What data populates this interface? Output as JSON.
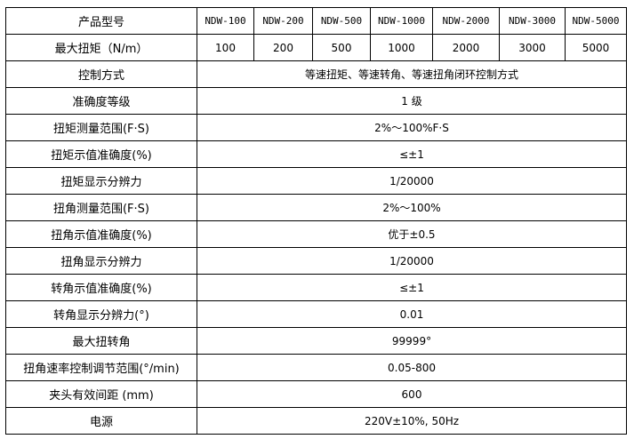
{
  "header": {
    "label": "产品型号",
    "models": [
      "NDW-100",
      "NDW-200",
      "NDW-500",
      "NDW-1000",
      "NDW-2000",
      "NDW-3000",
      "NDW-5000"
    ]
  },
  "torque_row": {
    "label": "最大扭矩（N/m）",
    "values": [
      "100",
      "200",
      "500",
      "1000",
      "2000",
      "3000",
      "5000"
    ]
  },
  "rows": [
    {
      "label": "控制方式",
      "value": "等速扭矩、等速转角、等速扭角闭环控制方式"
    },
    {
      "label": "准确度等级",
      "value": "1 级"
    },
    {
      "label": "扭矩测量范围(F·S)",
      "value": "2%～100%F·S"
    },
    {
      "label": "扭矩示值准确度(%)",
      "value": "≤±1"
    },
    {
      "label": "扭矩显示分辨力",
      "value": "1/20000"
    },
    {
      "label": "扭角测量范围(F·S)",
      "value": "2%～100%"
    },
    {
      "label": "扭角示值准确度(%)",
      "value": "优于±0.5"
    },
    {
      "label": "扭角显示分辨力",
      "value": "1/20000"
    },
    {
      "label": "转角示值准确度(%)",
      "value": "≤±1"
    },
    {
      "label": "转角显示分辨力(°)",
      "value": "0.01"
    },
    {
      "label": "最大扭转角",
      "value": "99999°"
    },
    {
      "label": "扭角速率控制调节范围(°/min)",
      "value": "0.05-800"
    },
    {
      "label": "夹头有效间距 (mm)",
      "value": "600"
    },
    {
      "label": "电源",
      "value": "220V±10%, 50Hz"
    }
  ]
}
